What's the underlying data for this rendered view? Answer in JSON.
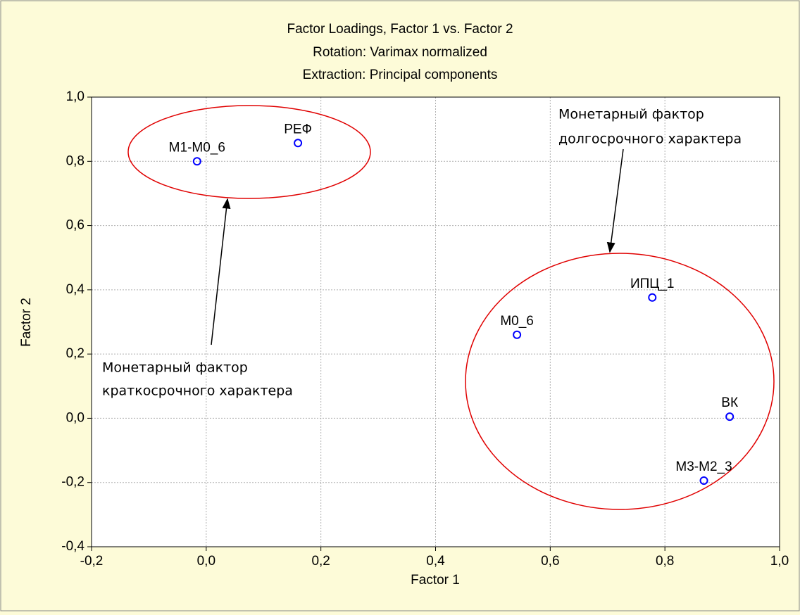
{
  "chart_data": {
    "type": "scatter",
    "title": "Factor Loadings, Factor 1 vs. Factor 2",
    "subtitle": [
      "Rotation: Varimax normalized",
      "Extraction: Principal components"
    ],
    "x_label": "Factor 1",
    "y_label": "Factor 2",
    "labels": [
      "M1-M0_6",
      "РЕФ",
      "M0_6",
      "ИПЦ_1",
      "ВК",
      "M3-M2_3"
    ],
    "x": [
      -0.016,
      0.16,
      0.542,
      0.778,
      0.913,
      0.868
    ],
    "values": [
      0.8,
      0.857,
      0.26,
      0.376,
      0.005,
      -0.194
    ],
    "color": "#0000ff",
    "xlim": [
      -0.2,
      1.0
    ],
    "xticks": [
      {
        "value": -0.2,
        "label": "-0,2"
      },
      {
        "value": 0,
        "label": "0,0"
      },
      {
        "value": 0.2,
        "label": "0,2"
      },
      {
        "value": 0.4,
        "label": "0,4"
      },
      {
        "value": 0.6,
        "label": "0,6"
      },
      {
        "value": 0.8,
        "label": "0,8"
      },
      {
        "value": 1.0,
        "label": "1,0"
      }
    ],
    "ylim": [
      -0.4,
      1.0
    ],
    "yticks": [
      {
        "value": -0.4,
        "label": "-0,4"
      },
      {
        "value": -0.2,
        "label": "-0,2"
      },
      {
        "value": 0,
        "label": "0,0"
      },
      {
        "value": 0.2,
        "label": "0,2"
      },
      {
        "value": 0.4,
        "label": "0,4"
      },
      {
        "value": 0.6,
        "label": "0,6"
      },
      {
        "value": 0.8,
        "label": "0,8"
      },
      {
        "value": 1.0,
        "label": "1,0"
      }
    ],
    "grid": true,
    "annotations": [
      {
        "lines": [
          "Монетарный фактор",
          "краткосрочного характера"
        ]
      },
      {
        "lines": [
          "Монетарный фактор",
          "долгосрочного характера"
        ]
      }
    ]
  }
}
